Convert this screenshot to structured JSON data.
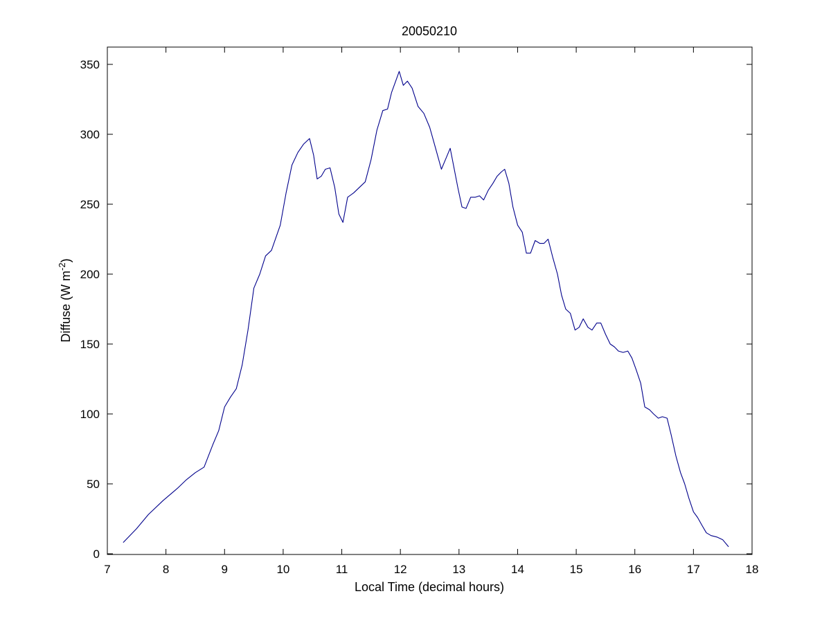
{
  "chart_data": {
    "type": "line",
    "title": "20050210",
    "xlabel": "Local Time (decimal hours)",
    "ylabel_prefix": "Diffuse (W m",
    "ylabel_superscript": "-2",
    "ylabel_suffix": ")",
    "xlim": [
      7,
      18
    ],
    "ylim": [
      0,
      360
    ],
    "xticks": [
      "7",
      "8",
      "9",
      "10",
      "11",
      "12",
      "13",
      "14",
      "15",
      "16",
      "17",
      "18"
    ],
    "yticks": [
      "0",
      "50",
      "100",
      "150",
      "200",
      "250",
      "300",
      "350"
    ],
    "grid": false,
    "legend": "none",
    "line_color": "#00008B",
    "series": [
      {
        "x": [
          7.27,
          7.5,
          7.7,
          7.95,
          8.2,
          8.35,
          8.5,
          8.65,
          8.8,
          8.9,
          9.0,
          9.1,
          9.2,
          9.3,
          9.4,
          9.5,
          9.6,
          9.7,
          9.8,
          9.95,
          10.05,
          10.15,
          10.25,
          10.35,
          10.45,
          10.52,
          10.58,
          10.65,
          10.72,
          10.8,
          10.88,
          10.95,
          11.02,
          11.1,
          11.2,
          11.3,
          11.4,
          11.5,
          11.6,
          11.7,
          11.78,
          11.85,
          11.92,
          11.98,
          12.05,
          12.12,
          12.2,
          12.3,
          12.4,
          12.5,
          12.6,
          12.7,
          12.78,
          12.85,
          12.92,
          12.98,
          13.05,
          13.12,
          13.2,
          13.28,
          13.35,
          13.42,
          13.5,
          13.58,
          13.65,
          13.72,
          13.78,
          13.85,
          13.92,
          14.0,
          14.08,
          14.15,
          14.22,
          14.3,
          14.38,
          14.45,
          14.52,
          14.6,
          14.68,
          14.75,
          14.82,
          14.9,
          14.98,
          15.05,
          15.12,
          15.2,
          15.27,
          15.35,
          15.42,
          15.5,
          15.58,
          15.65,
          15.72,
          15.8,
          15.88,
          15.95,
          16.02,
          16.1,
          16.17,
          16.25,
          16.32,
          16.4,
          16.47,
          16.55,
          16.62,
          16.7,
          16.78,
          16.85,
          16.92,
          17.0,
          17.07,
          17.15,
          17.22,
          17.3,
          17.4,
          17.5,
          17.6
        ],
        "y": [
          8,
          18,
          28,
          38,
          47,
          53,
          58,
          62,
          78,
          88,
          105,
          112,
          118,
          135,
          160,
          190,
          200,
          213,
          217,
          235,
          258,
          278,
          287,
          293,
          297,
          285,
          268,
          270,
          275,
          276,
          262,
          243,
          237,
          255,
          258,
          262,
          266,
          282,
          303,
          317,
          318,
          330,
          338,
          345,
          335,
          338,
          333,
          320,
          315,
          305,
          290,
          275,
          283,
          290,
          275,
          262,
          248,
          247,
          255,
          255,
          256,
          253,
          260,
          265,
          270,
          273,
          275,
          265,
          248,
          235,
          230,
          215,
          215,
          224,
          222,
          222,
          225,
          212,
          200,
          185,
          175,
          172,
          160,
          162,
          168,
          162,
          160,
          165,
          165,
          157,
          150,
          148,
          145,
          144,
          145,
          140,
          132,
          122,
          105,
          103,
          100,
          97,
          98,
          97,
          85,
          70,
          58,
          50,
          40,
          30,
          26,
          20,
          15,
          13,
          12,
          10,
          5
        ]
      }
    ]
  }
}
